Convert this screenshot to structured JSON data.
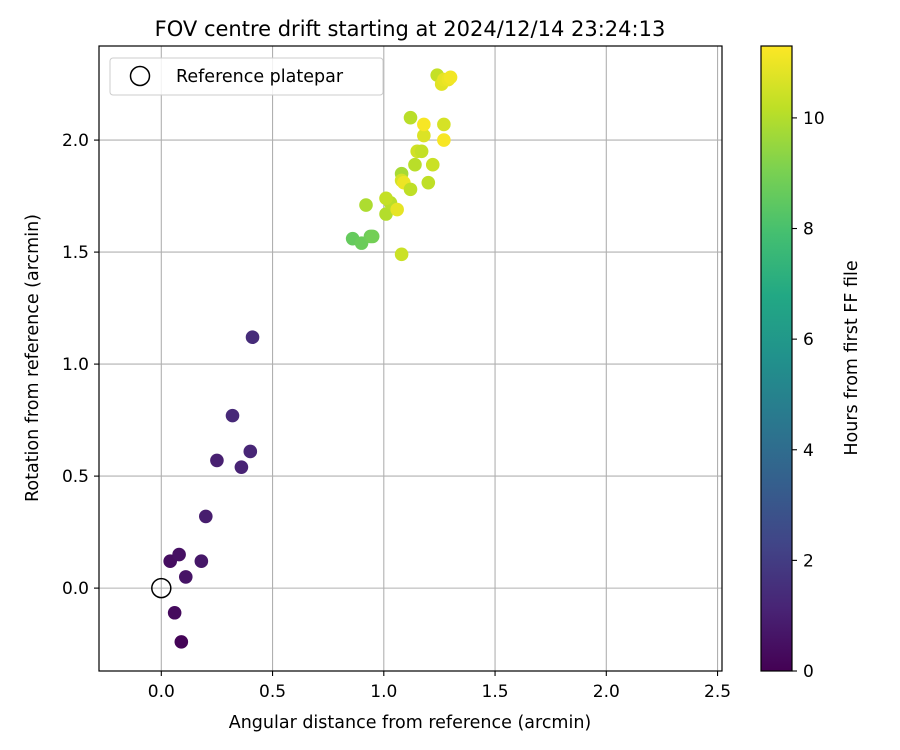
{
  "chart_data": {
    "type": "scatter",
    "title": "FOV centre drift starting at 2024/12/14 23:24:13",
    "xlabel": "Angular distance from reference (arcmin)",
    "ylabel": "Rotation from reference (arcmin)",
    "xlim": [
      -0.28,
      2.52
    ],
    "ylim": [
      -0.37,
      2.42
    ],
    "xticks": [
      0.0,
      0.5,
      1.0,
      1.5,
      2.0,
      2.5
    ],
    "xtick_labels": [
      "0.0",
      "0.5",
      "1.0",
      "1.5",
      "2.0",
      "2.5"
    ],
    "yticks": [
      0.0,
      0.5,
      1.0,
      1.5,
      2.0
    ],
    "ytick_labels": [
      "0.0",
      "0.5",
      "1.0",
      "1.5",
      "2.0"
    ],
    "grid": true,
    "legend": {
      "position": "top-left",
      "entries": [
        {
          "label": "Reference platepar",
          "marker": "open-circle"
        }
      ]
    },
    "reference_point": {
      "x": 0.0,
      "y": 0.0
    },
    "colorbar": {
      "label": "Hours from first FF file",
      "range": [
        0,
        11.3
      ],
      "ticks": [
        0,
        2,
        4,
        6,
        8,
        10
      ],
      "tick_labels": [
        "0",
        "2",
        "4",
        "6",
        "8",
        "10"
      ],
      "colormap": "viridis"
    },
    "points": [
      {
        "x": 0.09,
        "y": -0.24,
        "hours": 0.1
      },
      {
        "x": 0.06,
        "y": -0.11,
        "hours": 0.3
      },
      {
        "x": 0.04,
        "y": 0.12,
        "hours": 0.4
      },
      {
        "x": 0.08,
        "y": 0.15,
        "hours": 0.5
      },
      {
        "x": 0.11,
        "y": 0.05,
        "hours": 0.6
      },
      {
        "x": 0.18,
        "y": 0.12,
        "hours": 0.7
      },
      {
        "x": 0.2,
        "y": 0.32,
        "hours": 0.9
      },
      {
        "x": 0.25,
        "y": 0.57,
        "hours": 1.0
      },
      {
        "x": 0.36,
        "y": 0.54,
        "hours": 1.1
      },
      {
        "x": 0.4,
        "y": 0.61,
        "hours": 1.2
      },
      {
        "x": 0.32,
        "y": 0.77,
        "hours": 1.3
      },
      {
        "x": 0.41,
        "y": 1.12,
        "hours": 1.4
      },
      {
        "x": 0.86,
        "y": 1.56,
        "hours": 8.6
      },
      {
        "x": 0.9,
        "y": 1.54,
        "hours": 8.7
      },
      {
        "x": 0.94,
        "y": 1.57,
        "hours": 8.8
      },
      {
        "x": 0.95,
        "y": 1.57,
        "hours": 8.9
      },
      {
        "x": 1.08,
        "y": 1.49,
        "hours": 10.4
      },
      {
        "x": 0.92,
        "y": 1.71,
        "hours": 9.9
      },
      {
        "x": 1.01,
        "y": 1.67,
        "hours": 10.0
      },
      {
        "x": 1.03,
        "y": 1.72,
        "hours": 10.1
      },
      {
        "x": 1.01,
        "y": 1.74,
        "hours": 10.3
      },
      {
        "x": 1.06,
        "y": 1.69,
        "hours": 10.9
      },
      {
        "x": 1.08,
        "y": 1.85,
        "hours": 9.8
      },
      {
        "x": 1.08,
        "y": 1.82,
        "hours": 10.6
      },
      {
        "x": 1.09,
        "y": 1.81,
        "hours": 11.0
      },
      {
        "x": 1.12,
        "y": 1.78,
        "hours": 10.2
      },
      {
        "x": 1.14,
        "y": 1.89,
        "hours": 10.1
      },
      {
        "x": 1.15,
        "y": 1.95,
        "hours": 10.5
      },
      {
        "x": 1.17,
        "y": 1.95,
        "hours": 10.3
      },
      {
        "x": 1.2,
        "y": 1.81,
        "hours": 10.2
      },
      {
        "x": 1.22,
        "y": 1.89,
        "hours": 10.4
      },
      {
        "x": 1.12,
        "y": 2.1,
        "hours": 10.1
      },
      {
        "x": 1.18,
        "y": 2.02,
        "hours": 10.7
      },
      {
        "x": 1.18,
        "y": 2.07,
        "hours": 11.2
      },
      {
        "x": 1.27,
        "y": 2.07,
        "hours": 10.6
      },
      {
        "x": 1.27,
        "y": 2.0,
        "hours": 11.2
      },
      {
        "x": 1.24,
        "y": 2.29,
        "hours": 10.3
      },
      {
        "x": 1.26,
        "y": 2.25,
        "hours": 10.8
      },
      {
        "x": 1.27,
        "y": 2.27,
        "hours": 10.9
      },
      {
        "x": 1.29,
        "y": 2.27,
        "hours": 11.0
      },
      {
        "x": 1.3,
        "y": 2.28,
        "hours": 11.1
      }
    ]
  }
}
